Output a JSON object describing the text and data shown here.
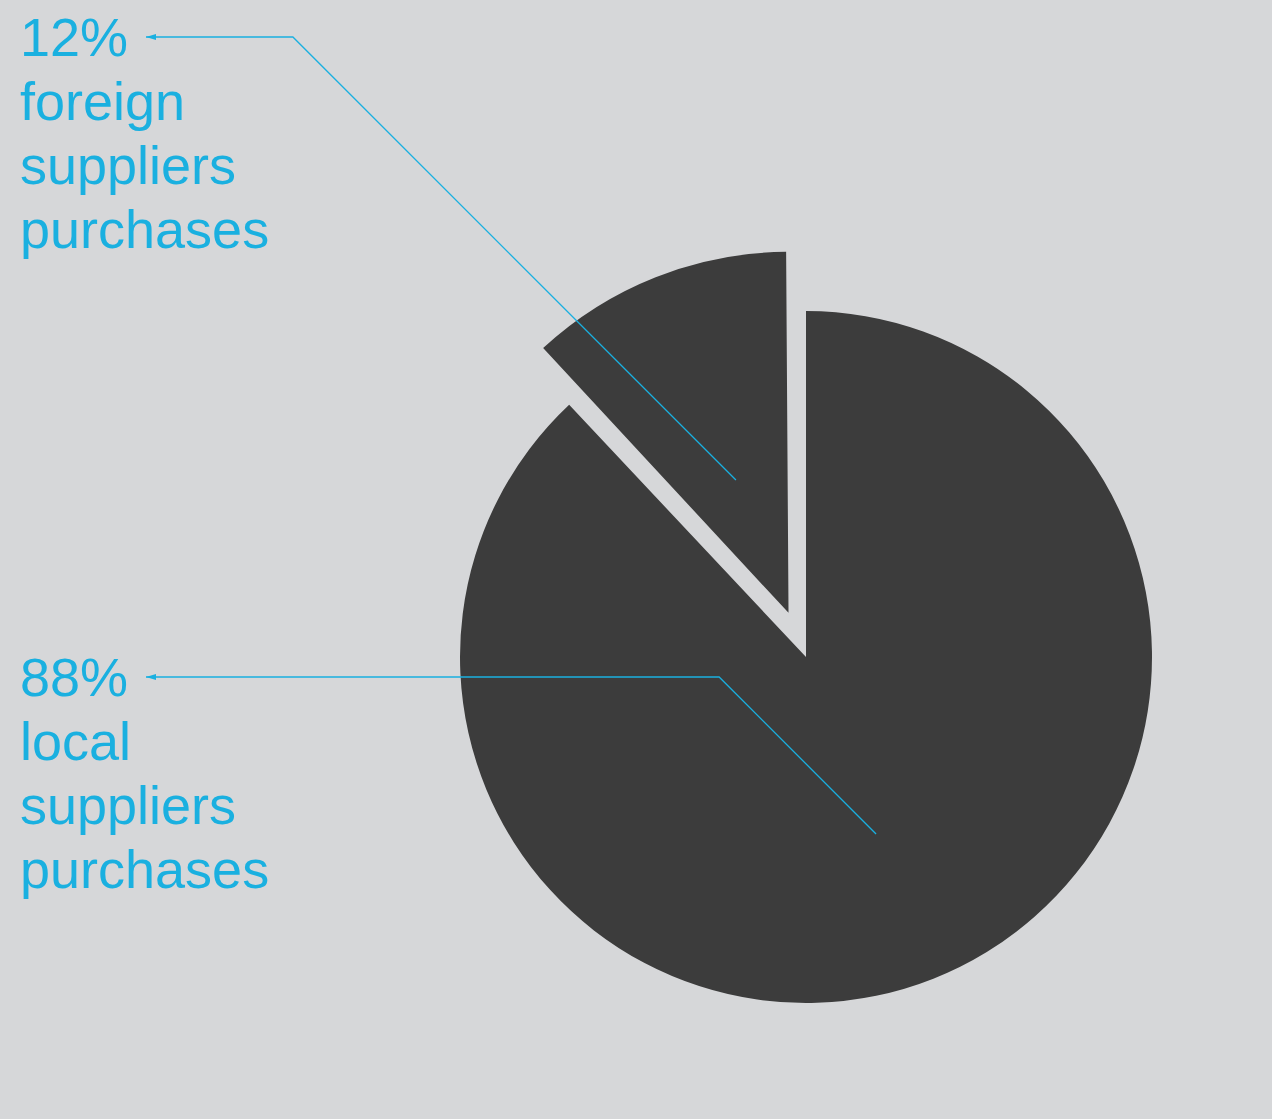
{
  "chart_data": {
    "type": "pie",
    "categories": [
      "local suppliers purchases",
      "foreign suppliers purchases"
    ],
    "values": [
      88,
      12
    ],
    "colors": [
      "#3c3c3c",
      "#3c3c3c"
    ],
    "value_labels": [
      "88%",
      "12%"
    ],
    "legend": false
  }
}
